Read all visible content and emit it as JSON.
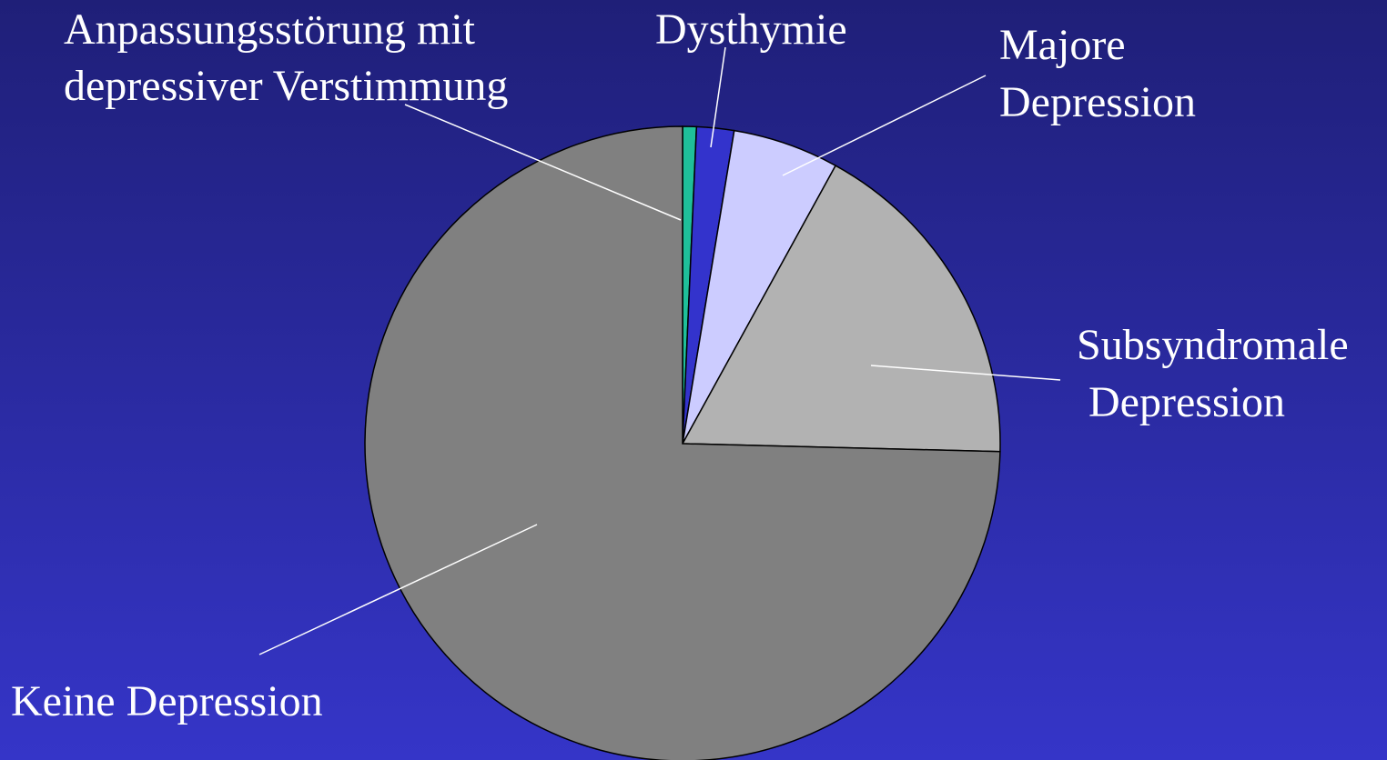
{
  "chart_data": {
    "type": "pie",
    "categories": [
      [
        "Anpassungsstörung mit",
        "depressiver Verstimmung"
      ],
      [
        "Dysthymie"
      ],
      [
        "Majore",
        "Depression"
      ],
      [
        "Subsyndromale",
        "Depression"
      ],
      [
        "Keine Depression"
      ]
    ],
    "values": [
      0.7,
      1.9,
      5.4,
      17.4,
      74.6
    ],
    "colors": [
      "#1fbf9a",
      "#3333cc",
      "#ccccff",
      "#b2b2b2",
      "#808080"
    ]
  }
}
